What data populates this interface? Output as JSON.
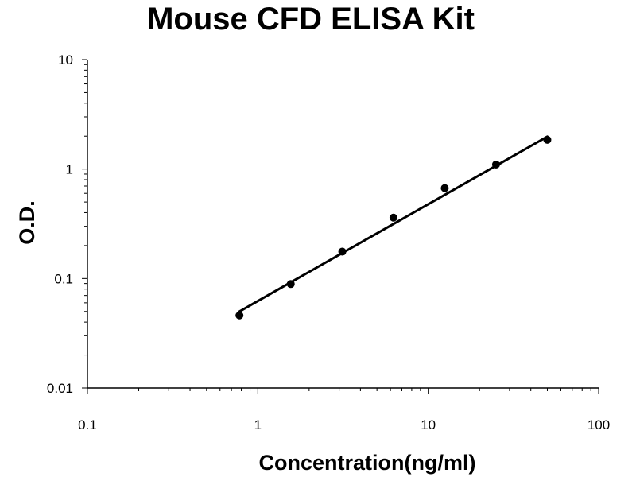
{
  "chart_data": {
    "type": "scatter",
    "title": "Mouse CFD ELISA Kit",
    "xlabel": "Concentration(ng/ml)",
    "ylabel": "O.D.",
    "x_scale": "log",
    "y_scale": "log",
    "xlim": [
      0.1,
      100
    ],
    "ylim": [
      0.01,
      10
    ],
    "x_ticks": [
      0.1,
      1,
      10,
      100
    ],
    "x_tick_labels": [
      "0.1",
      "1",
      "10",
      "100"
    ],
    "y_ticks": [
      0.01,
      0.1,
      1,
      10
    ],
    "y_tick_labels": [
      "0.01",
      "0.1",
      "1",
      "10"
    ],
    "grid": false,
    "legend": "none",
    "series": [
      {
        "x": [
          0.78,
          1.56,
          3.13,
          6.25,
          12.5,
          25,
          50
        ],
        "y": [
          0.046,
          0.089,
          0.176,
          0.36,
          0.67,
          1.1,
          1.85
        ]
      }
    ],
    "fit_line": {
      "x": [
        0.78,
        50
      ],
      "y": [
        0.05,
        1.98
      ]
    },
    "colors": {
      "marker": "#000000",
      "line": "#000000",
      "axis": "#000000"
    }
  }
}
